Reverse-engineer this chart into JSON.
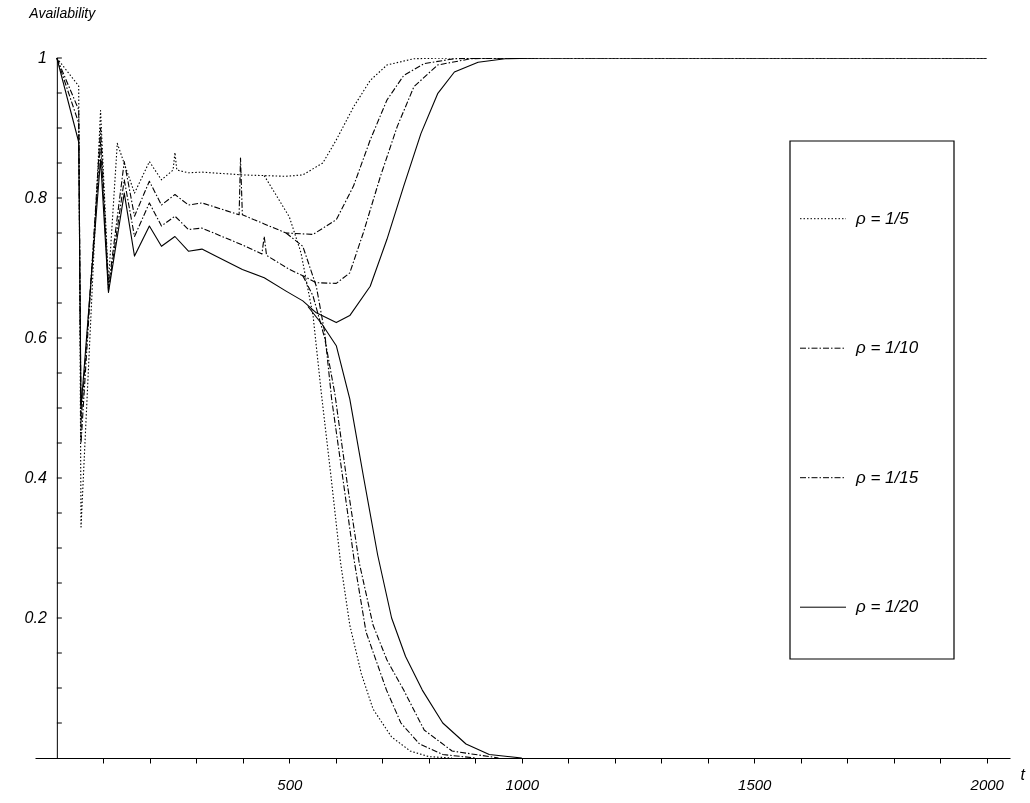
{
  "chart_data": {
    "type": "line",
    "ylabel": "Availability",
    "xlabel": "t",
    "xlim": [
      -47,
      2050
    ],
    "ylim": [
      0,
      1
    ],
    "xticks": [
      {
        "value": 100,
        "label": null
      },
      {
        "value": 200,
        "label": null
      },
      {
        "value": 300,
        "label": null
      },
      {
        "value": 400,
        "label": null
      },
      500,
      {
        "value": 600,
        "label": null
      },
      {
        "value": 700,
        "label": null
      },
      {
        "value": 800,
        "label": null
      },
      {
        "value": 900,
        "label": null
      },
      1000,
      {
        "value": 1100,
        "label": null
      },
      {
        "value": 1200,
        "label": null
      },
      {
        "value": 1300,
        "label": null
      },
      {
        "value": 1400,
        "label": null
      },
      1500,
      {
        "value": 1600,
        "label": null
      },
      {
        "value": 1700,
        "label": null
      },
      {
        "value": 1800,
        "label": null
      },
      {
        "value": 1900,
        "label": null
      },
      2000
    ],
    "yticks": [
      {
        "value": 0.05,
        "label": null
      },
      {
        "value": 0.1,
        "label": null
      },
      {
        "value": 0.15,
        "label": null
      },
      0.2,
      {
        "value": 0.25,
        "label": null
      },
      {
        "value": 0.3,
        "label": null
      },
      {
        "value": 0.35,
        "label": null
      },
      0.4,
      {
        "value": 0.45,
        "label": null
      },
      {
        "value": 0.5,
        "label": null
      },
      {
        "value": 0.55,
        "label": null
      },
      0.6,
      {
        "value": 0.65,
        "label": null
      },
      {
        "value": 0.7,
        "label": null
      },
      {
        "value": 0.75,
        "label": null
      },
      0.8,
      {
        "value": 0.85,
        "label": null
      },
      {
        "value": 0.9,
        "label": null
      },
      {
        "value": 0.95,
        "label": null
      },
      1
    ],
    "grid": false,
    "legend": "right",
    "marker": "none",
    "series": [
      {
        "name": "ρ = 1/5",
        "color": "#000000",
        "line_style": "dotted",
        "x": [
          0,
          47,
          52,
          94,
          111,
          130,
          167,
          199,
          225,
          250,
          254,
          258,
          283,
          312,
          399,
          446,
          493,
          529,
          572,
          601,
          638,
          674,
          710,
          768,
          850,
          2000
        ],
        "values": [
          1,
          0.96,
          0.33,
          0.925,
          0.68,
          0.878,
          0.807,
          0.852,
          0.826,
          0.84,
          0.865,
          0.84,
          0.836,
          0.837,
          0.833,
          0.832,
          0.831,
          0.833,
          0.85,
          0.883,
          0.93,
          0.968,
          0.99,
          0.999,
          1,
          1
        ]
      },
      {
        "color": "#000000",
        "line_style": "dotted",
        "x": [
          446,
          457,
          500,
          525,
          551,
          569,
          590,
          610,
          630,
          655,
          680,
          720,
          760,
          800,
          850
        ],
        "values": [
          0.832,
          0.82,
          0.773,
          0.722,
          0.632,
          0.52,
          0.4,
          0.28,
          0.19,
          0.12,
          0.07,
          0.03,
          0.01,
          0.002,
          0
        ]
      },
      {
        "name": "ρ = 1/10",
        "color": "#000000",
        "line_style": "dashed",
        "x": [
          0,
          47,
          52,
          94,
          111,
          145,
          167,
          199,
          225,
          254,
          283,
          312,
          392,
          395,
          399,
          446,
          493,
          551,
          601,
          638,
          674,
          710,
          746,
          790,
          855,
          950,
          2000
        ],
        "values": [
          1,
          0.926,
          0.45,
          0.9,
          0.672,
          0.852,
          0.774,
          0.824,
          0.79,
          0.805,
          0.79,
          0.793,
          0.776,
          0.857,
          0.776,
          0.763,
          0.75,
          0.748,
          0.769,
          0.817,
          0.883,
          0.94,
          0.975,
          0.992,
          0.999,
          1,
          1
        ]
      },
      {
        "color": "#000000",
        "line_style": "dashed",
        "x": [
          493,
          529,
          558,
          576,
          591,
          615,
          640,
          665,
          709,
          740,
          780,
          830,
          900
        ],
        "values": [
          0.75,
          0.731,
          0.674,
          0.608,
          0.513,
          0.4,
          0.28,
          0.18,
          0.097,
          0.05,
          0.02,
          0.005,
          0
        ]
      },
      {
        "name": "ρ = 1/15",
        "color": "#000000",
        "line_style": "dashed",
        "x": [
          0,
          47,
          52,
          94,
          111,
          145,
          167,
          199,
          225,
          254,
          283,
          312,
          399,
          441,
          446,
          451,
          500,
          529,
          558,
          601,
          630,
          659,
          696,
          732,
          768,
          819,
          891,
          1000,
          2000
        ],
        "values": [
          1,
          0.907,
          0.48,
          0.88,
          0.668,
          0.826,
          0.745,
          0.793,
          0.76,
          0.774,
          0.755,
          0.757,
          0.733,
          0.72,
          0.745,
          0.718,
          0.698,
          0.689,
          0.679,
          0.678,
          0.693,
          0.75,
          0.831,
          0.902,
          0.959,
          0.99,
          0.999,
          1,
          1
        ]
      },
      {
        "color": "#000000",
        "line_style": "dashed",
        "x": [
          529,
          551,
          576,
          598,
          625,
          650,
          680,
          710,
          746,
          790,
          850,
          950
        ],
        "values": [
          0.689,
          0.66,
          0.6,
          0.52,
          0.39,
          0.28,
          0.19,
          0.14,
          0.097,
          0.04,
          0.01,
          0
        ]
      },
      {
        "name": "ρ = 1/20",
        "color": "#000000",
        "line_style": "solid",
        "x": [
          0,
          47,
          52,
          94,
          111,
          145,
          167,
          199,
          225,
          254,
          283,
          312,
          399,
          446,
          493,
          529,
          558,
          601,
          630,
          674,
          710,
          746,
          783,
          819,
          855,
          906,
          964,
          1050,
          2000
        ],
        "values": [
          1,
          0.88,
          0.5,
          0.855,
          0.665,
          0.807,
          0.717,
          0.76,
          0.731,
          0.745,
          0.724,
          0.727,
          0.698,
          0.686,
          0.667,
          0.653,
          0.636,
          0.622,
          0.632,
          0.674,
          0.741,
          0.817,
          0.892,
          0.949,
          0.98,
          0.994,
          0.999,
          1,
          1
        ]
      },
      {
        "color": "#000000",
        "line_style": "solid",
        "x": [
          540,
          570,
          601,
          630,
          660,
          690,
          720,
          750,
          786,
          830,
          880,
          930,
          1000
        ],
        "values": [
          0.645,
          0.62,
          0.589,
          0.513,
          0.4,
          0.29,
          0.2,
          0.145,
          0.097,
          0.05,
          0.02,
          0.005,
          0
        ]
      }
    ]
  }
}
